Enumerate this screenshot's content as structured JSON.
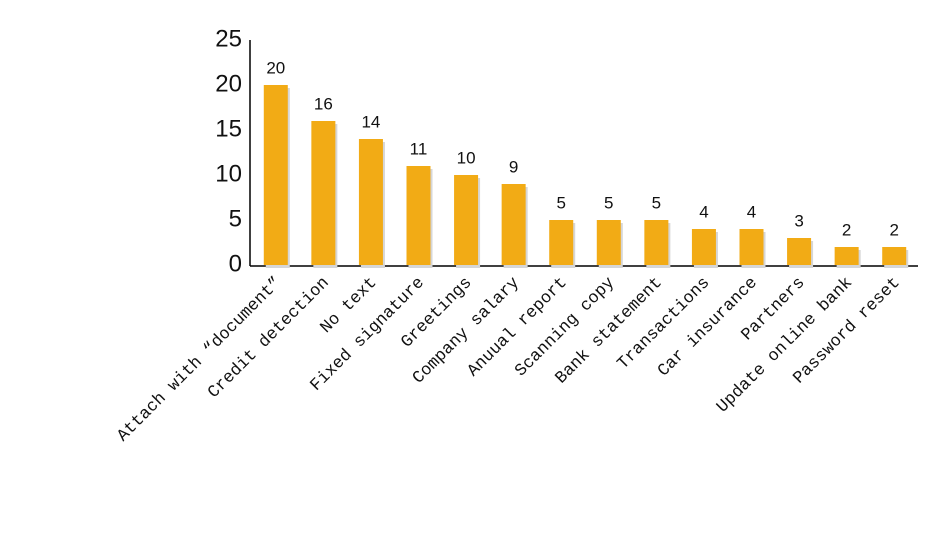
{
  "chart_data": {
    "type": "bar",
    "categories": [
      "Attach with “document”",
      "Credit detection",
      "No text",
      "Fixed signature",
      "Greetings",
      "Company salary",
      "Anuual report",
      "Scanning copy",
      "Bank statement",
      "Transactions",
      "Car insurance",
      "Partners",
      "Update online bank",
      "Password reset"
    ],
    "values": [
      20,
      16,
      14,
      11,
      10,
      9,
      5,
      5,
      5,
      4,
      4,
      3,
      2,
      2
    ],
    "color": "#f2ab15",
    "ylim": [
      0,
      25
    ],
    "yticks": [
      0,
      5,
      10,
      15,
      20,
      25
    ],
    "grid": false
  }
}
